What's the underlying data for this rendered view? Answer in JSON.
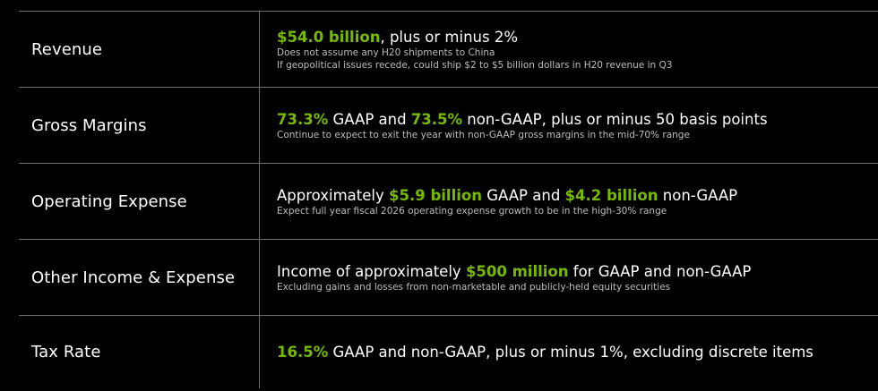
{
  "colors": {
    "background": "#000000",
    "accent_green": "#76b900",
    "text": "#ffffff",
    "note_text": "#bdbdbd",
    "divider": "#6e6e6e"
  },
  "rows": [
    {
      "label": "Revenue",
      "main": [
        {
          "text": "$54.0 billion",
          "highlight": true
        },
        {
          "text": ", plus or minus 2%",
          "highlight": false
        }
      ],
      "notes": [
        "Does not assume any H20 shipments to China",
        "If geopolitical issues recede, could ship $2 to $5 billion dollars in H20 revenue in Q3"
      ]
    },
    {
      "label": "Gross Margins",
      "main": [
        {
          "text": "73.3%",
          "highlight": true
        },
        {
          "text": " GAAP and ",
          "highlight": false
        },
        {
          "text": "73.5%",
          "highlight": true
        },
        {
          "text": " non-GAAP, plus or minus 50 basis points",
          "highlight": false
        }
      ],
      "notes": [
        "Continue to expect to exit the year with non-GAAP gross margins in the mid-70% range"
      ]
    },
    {
      "label": "Operating Expense",
      "main": [
        {
          "text": "Approximately ",
          "highlight": false
        },
        {
          "text": "$5.9 billion",
          "highlight": true
        },
        {
          "text": " GAAP and ",
          "highlight": false
        },
        {
          "text": "$4.2 billion",
          "highlight": true
        },
        {
          "text": " non-GAAP",
          "highlight": false
        }
      ],
      "notes": [
        "Expect full year fiscal 2026 operating expense growth to be in the high-30% range"
      ]
    },
    {
      "label": "Other Income & Expense",
      "main": [
        {
          "text": "Income of approximately ",
          "highlight": false
        },
        {
          "text": "$500 million",
          "highlight": true
        },
        {
          "text": " for GAAP and non-GAAP",
          "highlight": false
        }
      ],
      "notes": [
        "Excluding gains and losses from non-marketable and publicly-held equity securities"
      ]
    },
    {
      "label": "Tax Rate",
      "main": [
        {
          "text": "16.5%",
          "highlight": true
        },
        {
          "text": " GAAP and non-GAAP, plus or minus 1%, excluding discrete items",
          "highlight": false
        }
      ],
      "notes": []
    }
  ]
}
